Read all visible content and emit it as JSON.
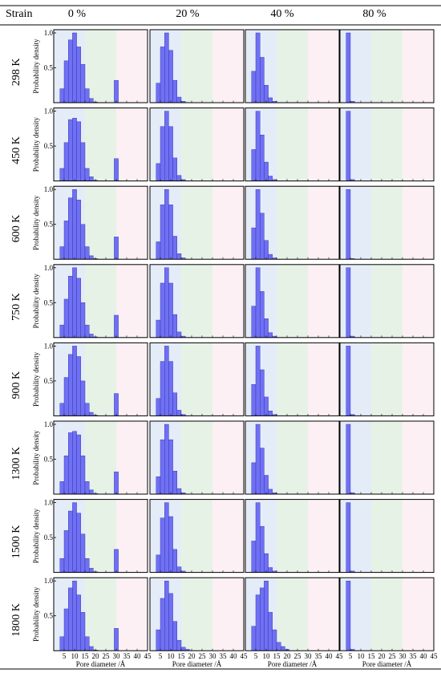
{
  "table": {
    "header_label": "Strain",
    "strains": [
      "0 %",
      "20 %",
      "40 %",
      "80 %"
    ],
    "temperatures": [
      "298 K",
      "450 K",
      "600 K",
      "750 K",
      "900 K",
      "1300 K",
      "1500 K",
      "1800 K"
    ]
  },
  "colors": {
    "bar": "#7070f2",
    "bar_edge": "#2a2ab0",
    "region_micro": "#e4ecf8",
    "region_meso": "#e6f2e6",
    "region_macro": "#fdf0f4",
    "rule": "#000000",
    "frame": "#000000"
  },
  "chart_data": {
    "type": "bar",
    "ylabel": "Probability density",
    "xlabel": "Pore diameter /Å",
    "xlim": [
      0,
      45
    ],
    "ylim": [
      0,
      1.0
    ],
    "xticks": [
      5,
      10,
      15,
      20,
      25,
      30,
      35,
      40,
      45
    ],
    "yticks": [
      0.5,
      1.0
    ],
    "ytick_labels": [
      "0.5",
      "1.0"
    ],
    "bin_width": 2,
    "bin_centers": [
      4,
      6,
      8,
      10,
      12,
      14,
      16,
      18,
      20,
      22,
      24,
      26,
      28,
      30,
      32,
      34
    ],
    "shaded_regions": [
      {
        "from": 0,
        "to": 15,
        "color_key": "region_micro"
      },
      {
        "from": 15,
        "to": 30,
        "color_key": "region_meso"
      },
      {
        "from": 30,
        "to": 45,
        "color_key": "region_macro"
      }
    ],
    "series": [
      {
        "values": [
          0.2,
          0.6,
          0.9,
          1.0,
          0.8,
          0.55,
          0.2,
          0.06,
          0.01,
          0,
          0,
          0,
          0,
          0.32,
          0,
          0
        ]
      },
      {
        "values": [
          0.28,
          0.8,
          1.0,
          0.75,
          0.32,
          0.08,
          0.02,
          0,
          0,
          0,
          0,
          0,
          0,
          0,
          0,
          0
        ]
      },
      {
        "values": [
          0.45,
          1.0,
          0.65,
          0.25,
          0.07,
          0.02,
          0,
          0,
          0,
          0,
          0,
          0,
          0,
          0,
          0,
          0
        ]
      },
      {
        "values": [
          1.0,
          0.02,
          0,
          0,
          0,
          0,
          0,
          0,
          0,
          0,
          0,
          0,
          0,
          0,
          0,
          0
        ]
      },
      {
        "values": [
          0.18,
          0.55,
          0.88,
          0.9,
          0.85,
          0.55,
          0.18,
          0.06,
          0.01,
          0,
          0,
          0,
          0,
          0.32,
          0,
          0
        ]
      },
      {
        "values": [
          0.25,
          0.78,
          1.0,
          0.78,
          0.33,
          0.08,
          0.02,
          0,
          0,
          0,
          0,
          0,
          0,
          0,
          0,
          0
        ]
      },
      {
        "values": [
          0.45,
          1.0,
          0.66,
          0.27,
          0.07,
          0.02,
          0,
          0,
          0,
          0,
          0,
          0,
          0,
          0,
          0,
          0
        ]
      },
      {
        "values": [
          1.0,
          0.02,
          0,
          0,
          0,
          0,
          0,
          0,
          0,
          0,
          0,
          0,
          0,
          0,
          0,
          0
        ]
      },
      {
        "values": [
          0.18,
          0.55,
          0.88,
          1.0,
          0.85,
          0.5,
          0.18,
          0.05,
          0.01,
          0,
          0,
          0,
          0,
          0.32,
          0,
          0
        ]
      },
      {
        "values": [
          0.25,
          0.78,
          1.0,
          0.78,
          0.33,
          0.08,
          0.02,
          0,
          0,
          0,
          0,
          0,
          0,
          0,
          0,
          0
        ]
      },
      {
        "values": [
          0.45,
          1.0,
          0.66,
          0.27,
          0.07,
          0.02,
          0,
          0,
          0,
          0,
          0,
          0,
          0,
          0,
          0,
          0
        ]
      },
      {
        "values": [
          1.0,
          0.01,
          0,
          0,
          0,
          0,
          0,
          0,
          0,
          0,
          0,
          0,
          0,
          0,
          0,
          0
        ]
      },
      {
        "values": [
          0.18,
          0.55,
          0.88,
          1.0,
          0.85,
          0.5,
          0.18,
          0.05,
          0.01,
          0,
          0,
          0,
          0,
          0.32,
          0,
          0
        ]
      },
      {
        "values": [
          0.25,
          0.78,
          1.0,
          0.78,
          0.33,
          0.08,
          0.02,
          0,
          0,
          0,
          0,
          0,
          0,
          0,
          0,
          0
        ]
      },
      {
        "values": [
          0.45,
          1.0,
          0.66,
          0.27,
          0.07,
          0.02,
          0,
          0,
          0,
          0,
          0,
          0,
          0,
          0,
          0,
          0
        ]
      },
      {
        "values": [
          1.0,
          0.02,
          0,
          0,
          0,
          0,
          0,
          0,
          0,
          0,
          0,
          0,
          0,
          0,
          0,
          0
        ]
      },
      {
        "values": [
          0.18,
          0.55,
          0.88,
          1.0,
          0.85,
          0.5,
          0.18,
          0.05,
          0.01,
          0,
          0,
          0,
          0,
          0.32,
          0,
          0
        ]
      },
      {
        "values": [
          0.25,
          0.78,
          1.0,
          0.78,
          0.33,
          0.08,
          0.02,
          0,
          0,
          0,
          0,
          0,
          0,
          0,
          0,
          0
        ]
      },
      {
        "values": [
          0.45,
          1.0,
          0.66,
          0.27,
          0.07,
          0.02,
          0,
          0,
          0,
          0,
          0,
          0,
          0,
          0,
          0,
          0
        ]
      },
      {
        "values": [
          1.0,
          0.02,
          0,
          0,
          0,
          0,
          0,
          0,
          0,
          0,
          0,
          0,
          0,
          0,
          0,
          0
        ]
      },
      {
        "values": [
          0.18,
          0.55,
          0.88,
          0.9,
          0.85,
          0.55,
          0.18,
          0.06,
          0.01,
          0,
          0,
          0,
          0,
          0.32,
          0,
          0
        ]
      },
      {
        "values": [
          0.25,
          0.78,
          1.0,
          0.78,
          0.33,
          0.08,
          0.02,
          0,
          0,
          0,
          0,
          0,
          0,
          0,
          0,
          0
        ]
      },
      {
        "values": [
          0.45,
          1.0,
          0.66,
          0.27,
          0.07,
          0.02,
          0,
          0,
          0,
          0,
          0,
          0,
          0,
          0,
          0,
          0
        ]
      },
      {
        "values": [
          1.0,
          0.02,
          0,
          0,
          0,
          0,
          0,
          0,
          0,
          0,
          0,
          0,
          0,
          0,
          0,
          0
        ]
      },
      {
        "values": [
          0.2,
          0.6,
          0.88,
          1.0,
          0.85,
          0.55,
          0.2,
          0.06,
          0.01,
          0,
          0,
          0,
          0,
          0.33,
          0,
          0
        ]
      },
      {
        "values": [
          0.25,
          0.78,
          1.0,
          0.8,
          0.33,
          0.08,
          0.02,
          0,
          0,
          0,
          0,
          0,
          0,
          0,
          0,
          0
        ]
      },
      {
        "values": [
          0.45,
          1.0,
          0.66,
          0.27,
          0.07,
          0.02,
          0,
          0,
          0,
          0,
          0,
          0,
          0,
          0,
          0,
          0
        ]
      },
      {
        "values": [
          1.0,
          0.02,
          0,
          0,
          0,
          0,
          0,
          0,
          0,
          0,
          0,
          0,
          0,
          0,
          0,
          0
        ]
      },
      {
        "values": [
          0.2,
          0.6,
          0.9,
          1.0,
          0.8,
          0.55,
          0.2,
          0.06,
          0.01,
          0,
          0,
          0,
          0,
          0.32,
          0,
          0
        ]
      },
      {
        "values": [
          0.3,
          0.75,
          1.0,
          0.82,
          0.42,
          0.15,
          0.05,
          0.02,
          0,
          0,
          0,
          0,
          0,
          0,
          0,
          0
        ]
      },
      {
        "values": [
          0.35,
          0.8,
          0.9,
          1.0,
          0.55,
          0.3,
          0.12,
          0.06,
          0.02,
          0,
          0,
          0,
          0,
          0,
          0,
          0
        ]
      },
      {
        "values": [
          1.0,
          0.02,
          0,
          0,
          0,
          0,
          0,
          0,
          0,
          0,
          0,
          0,
          0,
          0,
          0,
          0
        ]
      }
    ]
  }
}
